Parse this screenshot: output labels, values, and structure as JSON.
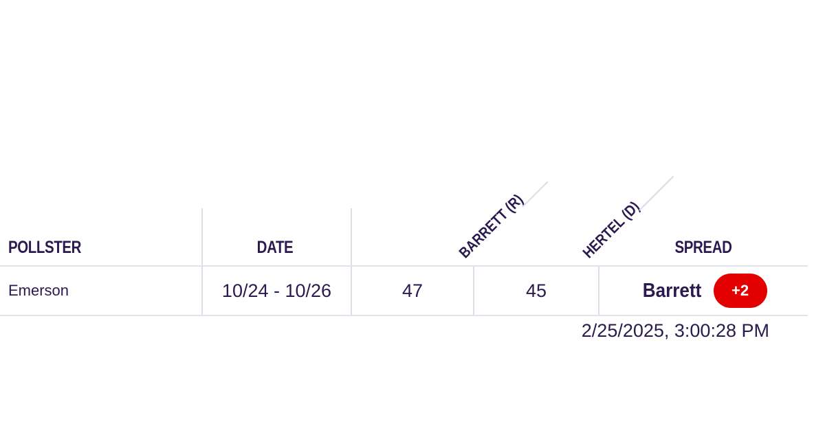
{
  "header": {
    "pollster": "POLLSTER",
    "date": "DATE",
    "candidate1": "BARRETT (R)",
    "candidate2": "HERTEL (D)",
    "spread": "SPREAD"
  },
  "rows": [
    {
      "pollster": "Emerson",
      "date": "10/24 - 10/26",
      "candidate1_value": "47",
      "candidate2_value": "45",
      "spread_leader": "Barrett",
      "spread_margin": "+2"
    }
  ],
  "timestamp": "2/25/2025, 3:00:28 PM",
  "colors": {
    "text": "#2a1a4f",
    "badge": "#e20000",
    "grid": "#dedee6"
  }
}
